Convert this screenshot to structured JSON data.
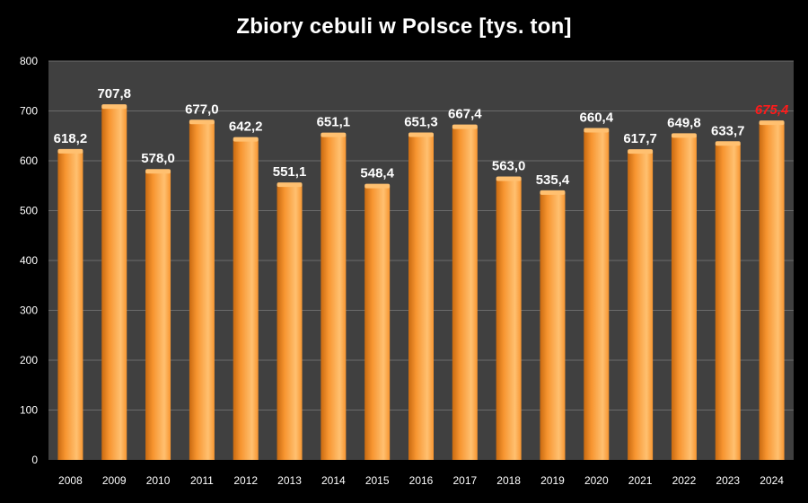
{
  "chart_data": {
    "type": "bar",
    "title": "Zbiory cebuli w Polsce [tys. ton]",
    "categories": [
      "2008",
      "2009",
      "2010",
      "2011",
      "2012",
      "2013",
      "2014",
      "2015",
      "2016",
      "2017",
      "2018",
      "2019",
      "2020",
      "2021",
      "2022",
      "2023",
      "2024"
    ],
    "values": [
      618.2,
      707.8,
      578.0,
      677.0,
      642.2,
      551.1,
      651.1,
      548.4,
      651.3,
      667.4,
      563.0,
      535.4,
      660.4,
      617.7,
      649.8,
      633.7,
      675.4
    ],
    "data_labels": [
      "618,2",
      "707,8",
      "578,0",
      "677,0",
      "642,2",
      "551,1",
      "651,1",
      "548,4",
      "651,3",
      "667,4",
      "563,0",
      "535,4",
      "660,4",
      "617,7",
      "649,8",
      "633,7",
      "675,4"
    ],
    "highlight_index": 16,
    "ylim": [
      0,
      800
    ],
    "yticks": [
      0,
      100,
      200,
      300,
      400,
      500,
      600,
      700,
      800
    ],
    "xlabel": "",
    "ylabel": "",
    "grid": true,
    "legend": "none",
    "colors": {
      "background": "#000000",
      "plot_area": "#404040",
      "gridline": "#6b6b6b",
      "bar_light": "#ffc070",
      "bar_main": "#f79530",
      "bar_dark": "#c96a10",
      "label": "#ffffff",
      "highlight_label": "#ff1a1a"
    }
  }
}
